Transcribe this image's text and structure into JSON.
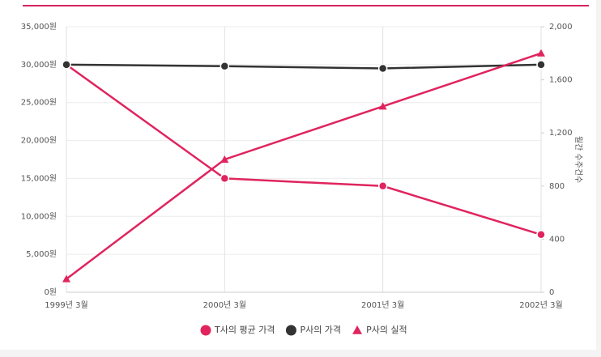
{
  "chart_data": {
    "type": "line",
    "categories": [
      "1999년 3월",
      "2000년 3월",
      "2001년 3월",
      "2002년 3월"
    ],
    "series": [
      {
        "name": "T사의 평균 가격",
        "color": "#e0245e",
        "marker": "circle",
        "values": [
          30000,
          15000,
          14000,
          7600
        ]
      },
      {
        "name": "P사의 가격",
        "color": "#333333",
        "marker": "circle",
        "values": [
          30000,
          29800,
          29500,
          30000
        ]
      },
      {
        "name": "P사의 실적",
        "color": "#e0245e",
        "marker": "triangle",
        "axis": "y2",
        "values": [
          100,
          1000,
          1400,
          1800
        ]
      }
    ],
    "ylim": [
      0,
      35000
    ],
    "yticks": [
      {
        "value": 0,
        "label": "0원"
      },
      {
        "value": 5000,
        "label": "5,000원"
      },
      {
        "value": 10000,
        "label": "10,000원"
      },
      {
        "value": 15000,
        "label": "15,000원"
      },
      {
        "value": 20000,
        "label": "20,000원"
      },
      {
        "value": 25000,
        "label": "25,000원"
      },
      {
        "value": 30000,
        "label": "30,000원"
      },
      {
        "value": 35000,
        "label": "35,000원"
      }
    ],
    "y2lim": [
      0,
      2000
    ],
    "y2ticks": [
      0,
      400,
      800,
      {
        "value": 1200,
        "label": "1,200"
      },
      {
        "value": 1600,
        "label": "1,600"
      },
      {
        "value": 2000,
        "label": "2,000"
      }
    ],
    "y2label": "월간 수주건수",
    "grid": true,
    "legend": "bottom"
  }
}
